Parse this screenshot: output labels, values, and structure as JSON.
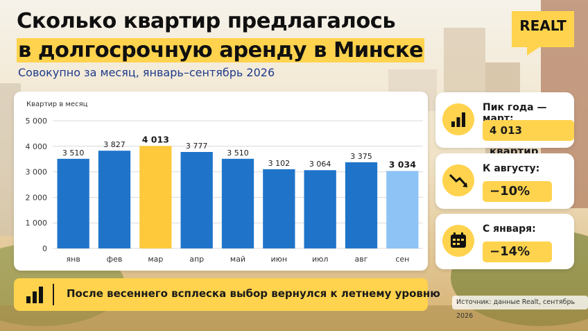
{
  "header": {
    "title_line1": "Сколько квартир предлагалось",
    "title_line2": "в долгосрочную аренду в Минске",
    "subtitle": "Совокупно за месяц, январь–сентябрь 2026"
  },
  "logo": {
    "text": "REALT"
  },
  "chart_data": {
    "type": "bar",
    "ylabel": "Квартир в месяц",
    "categories": [
      "янв",
      "фев",
      "мар",
      "апр",
      "май",
      "июн",
      "июл",
      "авг",
      "сен"
    ],
    "values": [
      3510,
      3827,
      4013,
      3777,
      3510,
      3102,
      3064,
      3375,
      3034
    ],
    "value_labels": [
      "3 510",
      "3 827",
      "4 013",
      "3 777",
      "3 510",
      "3 102",
      "3 064",
      "3 375",
      "3 034"
    ],
    "ylim": [
      0,
      5000
    ],
    "yticks": [
      0,
      1000,
      2000,
      3000,
      4000,
      5000
    ],
    "ytick_labels": [
      "0",
      "1 000",
      "2 000",
      "3 000",
      "4 000",
      "5 000"
    ],
    "grid": true,
    "highlight_index": 2,
    "latest_index": 8,
    "colors": {
      "bar": "#1f74c9",
      "highlight": "#ffc93c",
      "latest": "#8ec3f5",
      "grid": "#d9d9d9"
    }
  },
  "cards": [
    {
      "icon": "bar-chart-icon",
      "label": "Пик года — март:",
      "value": "4 013 квартир"
    },
    {
      "icon": "trend-down-icon",
      "label": "К августу:",
      "value": "−10%"
    },
    {
      "icon": "calendar-icon",
      "label": "С января:",
      "value": "−14%"
    }
  ],
  "banner": {
    "icon": "bar-chart-icon",
    "text": "После весеннего всплеска выбор вернулся к летнему уровню"
  },
  "source": "Источник: данные Realt, сентябрь 2026",
  "colors": {
    "accent": "#ffd34d",
    "title_blue": "#1d3a8a",
    "text": "#101010"
  }
}
